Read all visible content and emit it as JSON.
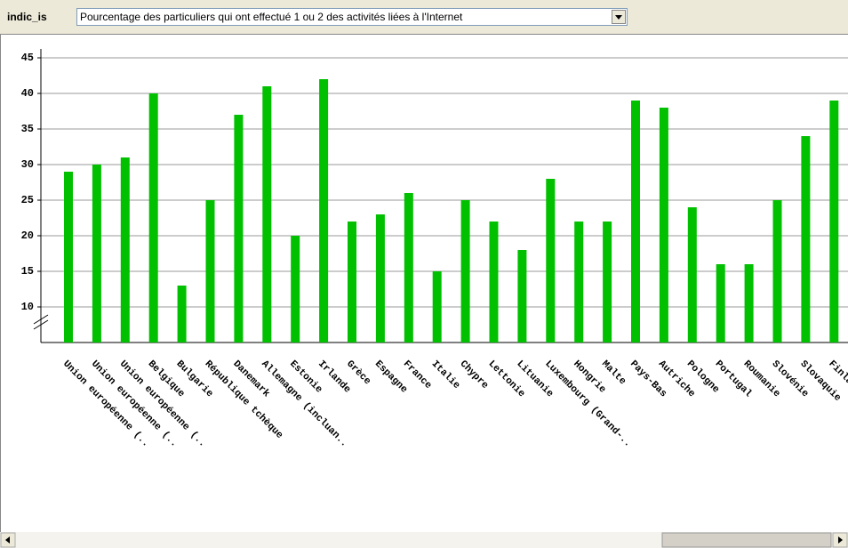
{
  "filter": {
    "label": "indic_is",
    "selected": "Pourcentage des particuliers qui ont effectué 1 ou 2 des activités liées à l'Internet"
  },
  "chart_data": {
    "type": "bar",
    "color": "#00c000",
    "grid": true,
    "categories": [
      "Union européenne (..",
      "Union européenne (..",
      "Union européenne (..",
      "Belgique",
      "Bulgarie",
      "République tchèque",
      "Danemark",
      "Allemagne (incluan..",
      "Estonie",
      "Irlande",
      "Grèce",
      "Espagne",
      "France",
      "Italie",
      "Chypre",
      "Lettonie",
      "Lituanie",
      "Luxembourg (Grand-..",
      "Hongrie",
      "Malte",
      "Pays-Bas",
      "Autriche",
      "Pologne",
      "Portugal",
      "Roumanie",
      "Slovénie",
      "Slovaquie",
      "Finlande"
    ],
    "values": [
      29,
      30,
      31,
      40,
      13,
      25,
      37,
      41,
      20,
      42,
      22,
      23,
      26,
      15,
      25,
      22,
      18,
      28,
      22,
      22,
      39,
      38,
      24,
      16,
      16,
      25,
      34,
      39
    ],
    "ylim": [
      5,
      45
    ],
    "yticks": [
      10,
      15,
      20,
      25,
      30,
      35,
      40,
      45
    ]
  }
}
